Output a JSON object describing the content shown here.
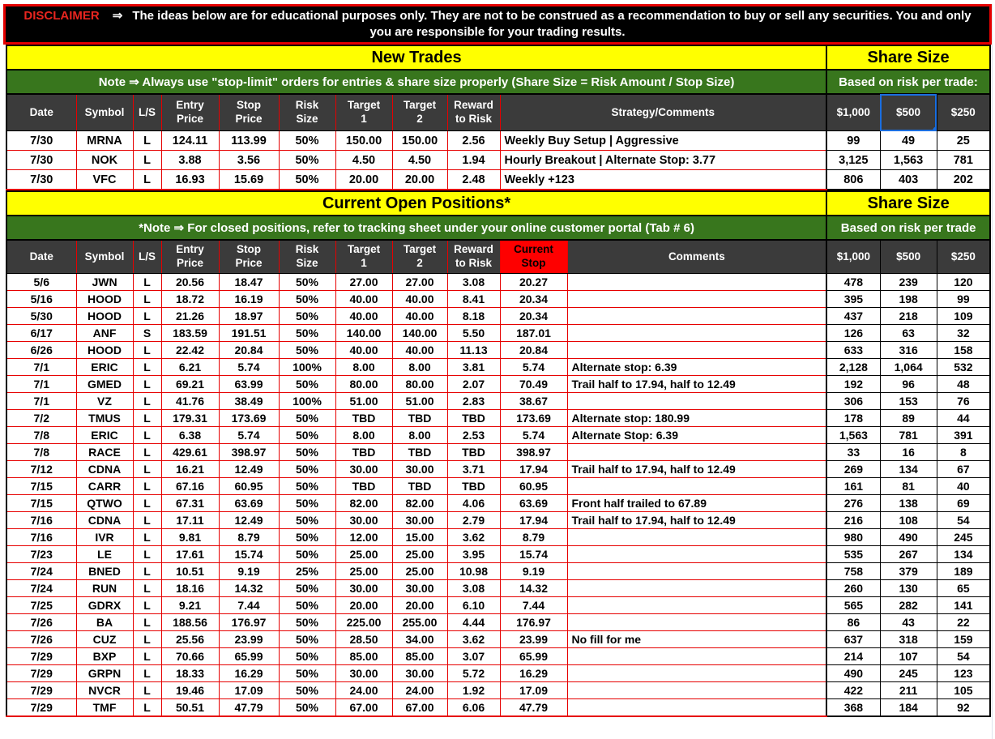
{
  "disclaimer": {
    "label": "DISCLAIMER",
    "arrow": "⇒",
    "text": "The ideas below are for educational purposes only. They are not to be construed as a recommendation to buy or sell any securities. You and only you are responsible for your trading results."
  },
  "colors": {
    "banner_background": "#000000",
    "banner_border_red": "#e60000",
    "disclaimer_label_red": "#e8251f",
    "title_yellow": "#ffff00",
    "note_green": "#38761d",
    "header_dark_gray": "#3b3b3b",
    "grid_red": "#e60000",
    "current_stop_red": "#fe0000",
    "selection_blue": "#1a6ee0"
  },
  "selection": {
    "table": "new_trades",
    "key": "size_500",
    "label": "$500"
  },
  "new_trades": {
    "title": "New Trades",
    "share_size_title": "Share Size",
    "note": "Note ⇒ Always use \"stop-limit\" orders for entries & share size properly (Share Size = Risk Amount / Stop Size)",
    "share_note": "Based on risk per trade:",
    "keys": [
      "date",
      "symbol",
      "ls",
      "entry_price",
      "stop_price",
      "risk_size",
      "target_1",
      "target_2",
      "reward_to_risk",
      "strategy_comments",
      "size_1000",
      "size_500",
      "size_250"
    ],
    "columns": [
      "Date",
      "Symbol",
      "L/S",
      "Entry\nPrice",
      "Stop\nPrice",
      "Risk\nSize",
      "Target\n1",
      "Target\n2",
      "Reward\nto Risk",
      "Strategy/Comments",
      "$1,000",
      "$500",
      "$250"
    ],
    "rows": [
      [
        "7/30",
        "MRNA",
        "L",
        "124.11",
        "113.99",
        "50%",
        "150.00",
        "150.00",
        "2.56",
        "Weekly Buy Setup | Aggressive",
        "99",
        "49",
        "25"
      ],
      [
        "7/30",
        "NOK",
        "L",
        "3.88",
        "3.56",
        "50%",
        "4.50",
        "4.50",
        "1.94",
        "Hourly Breakout | Alternate Stop: 3.77",
        "3,125",
        "1,563",
        "781"
      ],
      [
        "7/30",
        "VFC",
        "L",
        "16.93",
        "15.69",
        "50%",
        "20.00",
        "20.00",
        "2.48",
        "Weekly +123",
        "806",
        "403",
        "202"
      ]
    ]
  },
  "open_positions": {
    "title": "Current Open Positions*",
    "share_size_title": "Share Size",
    "note": "*Note ⇒ For closed positions, refer to tracking sheet under your online customer portal (Tab # 6)",
    "share_note": "Based on risk per trade",
    "keys": [
      "date",
      "symbol",
      "ls",
      "entry_price",
      "stop_price",
      "risk_size",
      "target_1",
      "target_2",
      "reward_to_risk",
      "current_stop",
      "comments",
      "size_1000",
      "size_500",
      "size_250"
    ],
    "columns": [
      "Date",
      "Symbol",
      "L/S",
      "Entry\nPrice",
      "Stop\nPrice",
      "Risk\nSize",
      "Target\n1",
      "Target\n2",
      "Reward\nto Risk",
      "Current\nStop",
      "Comments",
      "$1,000",
      "$500",
      "$250"
    ],
    "rows": [
      [
        "5/6",
        "JWN",
        "L",
        "20.56",
        "18.47",
        "50%",
        "27.00",
        "27.00",
        "3.08",
        "20.27",
        "",
        "478",
        "239",
        "120"
      ],
      [
        "5/16",
        "HOOD",
        "L",
        "18.72",
        "16.19",
        "50%",
        "40.00",
        "40.00",
        "8.41",
        "20.34",
        "",
        "395",
        "198",
        "99"
      ],
      [
        "5/30",
        "HOOD",
        "L",
        "21.26",
        "18.97",
        "50%",
        "40.00",
        "40.00",
        "8.18",
        "20.34",
        "",
        "437",
        "218",
        "109"
      ],
      [
        "6/17",
        "ANF",
        "S",
        "183.59",
        "191.51",
        "50%",
        "140.00",
        "140.00",
        "5.50",
        "187.01",
        "",
        "126",
        "63",
        "32"
      ],
      [
        "6/26",
        "HOOD",
        "L",
        "22.42",
        "20.84",
        "50%",
        "40.00",
        "40.00",
        "11.13",
        "20.84",
        "",
        "633",
        "316",
        "158"
      ],
      [
        "7/1",
        "ERIC",
        "L",
        "6.21",
        "5.74",
        "100%",
        "8.00",
        "8.00",
        "3.81",
        "5.74",
        "Alternate stop: 6.39",
        "2,128",
        "1,064",
        "532"
      ],
      [
        "7/1",
        "GMED",
        "L",
        "69.21",
        "63.99",
        "50%",
        "80.00",
        "80.00",
        "2.07",
        "70.49",
        "Trail half to 17.94, half to 12.49",
        "192",
        "96",
        "48"
      ],
      [
        "7/1",
        "VZ",
        "L",
        "41.76",
        "38.49",
        "100%",
        "51.00",
        "51.00",
        "2.83",
        "38.67",
        "",
        "306",
        "153",
        "76"
      ],
      [
        "7/2",
        "TMUS",
        "L",
        "179.31",
        "173.69",
        "50%",
        "TBD",
        "TBD",
        "TBD",
        "173.69",
        "Alternate stop: 180.99",
        "178",
        "89",
        "44"
      ],
      [
        "7/8",
        "ERIC",
        "L",
        "6.38",
        "5.74",
        "50%",
        "8.00",
        "8.00",
        "2.53",
        "5.74",
        "Alternate Stop: 6.39",
        "1,563",
        "781",
        "391"
      ],
      [
        "7/8",
        "RACE",
        "L",
        "429.61",
        "398.97",
        "50%",
        "TBD",
        "TBD",
        "TBD",
        "398.97",
        "",
        "33",
        "16",
        "8"
      ],
      [
        "7/12",
        "CDNA",
        "L",
        "16.21",
        "12.49",
        "50%",
        "30.00",
        "30.00",
        "3.71",
        "17.94",
        "Trail half to 17.94, half to 12.49",
        "269",
        "134",
        "67"
      ],
      [
        "7/15",
        "CARR",
        "L",
        "67.16",
        "60.95",
        "50%",
        "TBD",
        "TBD",
        "TBD",
        "60.95",
        "",
        "161",
        "81",
        "40"
      ],
      [
        "7/15",
        "QTWO",
        "L",
        "67.31",
        "63.69",
        "50%",
        "82.00",
        "82.00",
        "4.06",
        "63.69",
        "Front half trailed to 67.89",
        "276",
        "138",
        "69"
      ],
      [
        "7/16",
        "CDNA",
        "L",
        "17.11",
        "12.49",
        "50%",
        "30.00",
        "30.00",
        "2.79",
        "17.94",
        "Trail half to 17.94, half to 12.49",
        "216",
        "108",
        "54"
      ],
      [
        "7/16",
        "IVR",
        "L",
        "9.81",
        "8.79",
        "50%",
        "12.00",
        "15.00",
        "3.62",
        "8.79",
        "",
        "980",
        "490",
        "245"
      ],
      [
        "7/23",
        "LE",
        "L",
        "17.61",
        "15.74",
        "50%",
        "25.00",
        "25.00",
        "3.95",
        "15.74",
        "",
        "535",
        "267",
        "134"
      ],
      [
        "7/24",
        "BNED",
        "L",
        "10.51",
        "9.19",
        "25%",
        "25.00",
        "25.00",
        "10.98",
        "9.19",
        "",
        "758",
        "379",
        "189"
      ],
      [
        "7/24",
        "RUN",
        "L",
        "18.16",
        "14.32",
        "50%",
        "30.00",
        "30.00",
        "3.08",
        "14.32",
        "",
        "260",
        "130",
        "65"
      ],
      [
        "7/25",
        "GDRX",
        "L",
        "9.21",
        "7.44",
        "50%",
        "20.00",
        "20.00",
        "6.10",
        "7.44",
        "",
        "565",
        "282",
        "141"
      ],
      [
        "7/26",
        "BA",
        "L",
        "188.56",
        "176.97",
        "50%",
        "225.00",
        "255.00",
        "4.44",
        "176.97",
        "",
        "86",
        "43",
        "22"
      ],
      [
        "7/26",
        "CUZ",
        "L",
        "25.56",
        "23.99",
        "50%",
        "28.50",
        "34.00",
        "3.62",
        "23.99",
        "No fill for me",
        "637",
        "318",
        "159"
      ],
      [
        "7/29",
        "BXP",
        "L",
        "70.66",
        "65.99",
        "50%",
        "85.00",
        "85.00",
        "3.07",
        "65.99",
        "",
        "214",
        "107",
        "54"
      ],
      [
        "7/29",
        "GRPN",
        "L",
        "18.33",
        "16.29",
        "50%",
        "30.00",
        "30.00",
        "5.72",
        "16.29",
        "",
        "490",
        "245",
        "123"
      ],
      [
        "7/29",
        "NVCR",
        "L",
        "19.46",
        "17.09",
        "50%",
        "24.00",
        "24.00",
        "1.92",
        "17.09",
        "",
        "422",
        "211",
        "105"
      ],
      [
        "7/29",
        "TMF",
        "L",
        "50.51",
        "47.79",
        "50%",
        "67.00",
        "67.00",
        "6.06",
        "47.79",
        "",
        "368",
        "184",
        "92"
      ]
    ]
  }
}
